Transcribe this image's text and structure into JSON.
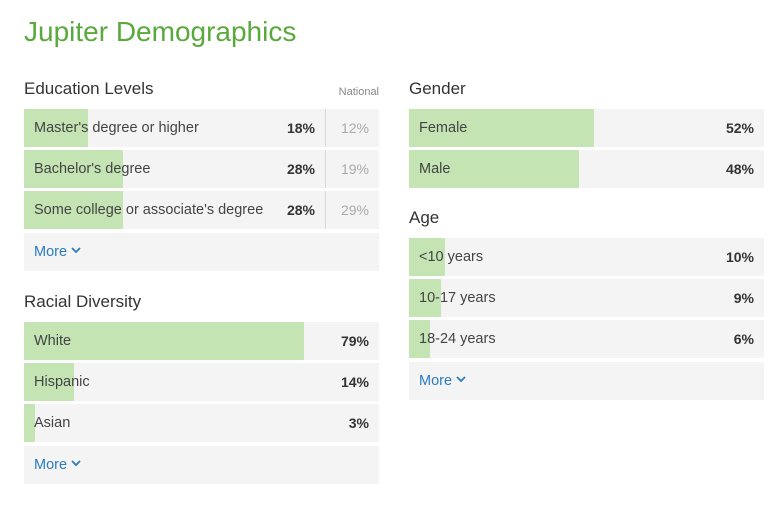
{
  "page": {
    "title": "Jupiter Demographics"
  },
  "education": {
    "title": "Education Levels",
    "national_label": "National",
    "more_label": "More",
    "rows": [
      {
        "label": "Master's degree or higher",
        "pct": "18%",
        "national": "12%",
        "value": 0.18
      },
      {
        "label": "Bachelor's degree",
        "pct": "28%",
        "national": "19%",
        "value": 0.28
      },
      {
        "label": "Some college or associate's degree",
        "pct": "28%",
        "national": "29%",
        "value": 0.28
      }
    ]
  },
  "racial": {
    "title": "Racial Diversity",
    "more_label": "More",
    "rows": [
      {
        "label": "White",
        "pct": "79%",
        "value": 0.79
      },
      {
        "label": "Hispanic",
        "pct": "14%",
        "value": 0.14
      },
      {
        "label": "Asian",
        "pct": "3%",
        "value": 0.03
      }
    ]
  },
  "gender": {
    "title": "Gender",
    "rows": [
      {
        "label": "Female",
        "pct": "52%",
        "value": 0.52
      },
      {
        "label": "Male",
        "pct": "48%",
        "value": 0.48
      }
    ]
  },
  "age": {
    "title": "Age",
    "more_label": "More",
    "rows": [
      {
        "label": "<10 years",
        "pct": "10%",
        "value": 0.1
      },
      {
        "label": "10-17 years",
        "pct": "9%",
        "value": 0.09
      },
      {
        "label": "18-24 years",
        "pct": "6%",
        "value": 0.06
      }
    ]
  },
  "colors": {
    "accent": "#5aa93c",
    "bar": "#c4e4b4",
    "link": "#2b7bc0"
  },
  "icons": {
    "more": "chevron-down-icon"
  }
}
